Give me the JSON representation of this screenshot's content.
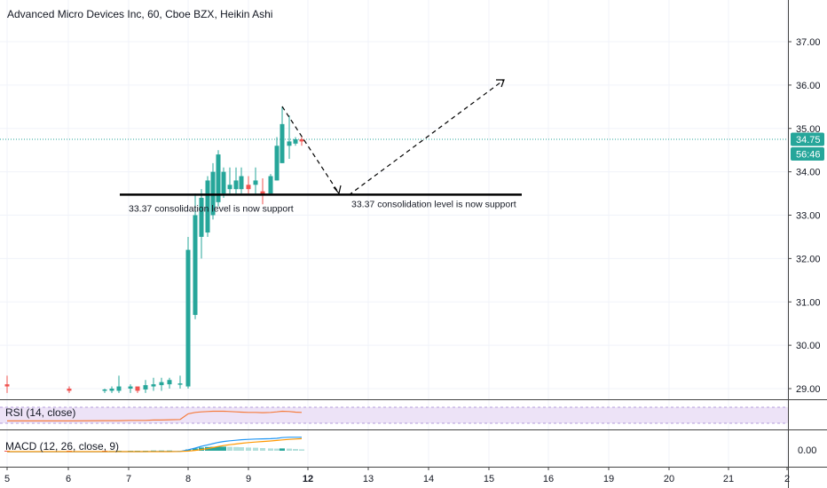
{
  "chart_data": {
    "type": "candlestick",
    "title": "Advanced Micro Devices Inc, 60, Cboe BZX, Heikin Ashi",
    "y_ticks": [
      "37.00",
      "36.00",
      "35.00",
      "34.00",
      "33.00",
      "32.00",
      "31.00",
      "30.00",
      "29.00"
    ],
    "ylim": [
      28.8,
      37.9
    ],
    "x_ticks": [
      "5",
      "6",
      "7",
      "8",
      "9",
      "12",
      "13",
      "14",
      "15",
      "16",
      "19",
      "20",
      "21",
      "2"
    ],
    "current_price": "34.75",
    "countdown": "56:46",
    "colors": {
      "up": "#26a69a",
      "down": "#ef5350",
      "rsi": "#f57c3e",
      "macd": "#2196f3",
      "signal": "#ff9800"
    },
    "candles": [
      {
        "o": 29.1,
        "h": 29.3,
        "l": 28.9,
        "c": 29.05
      },
      {
        "o": 29.0,
        "h": 29.05,
        "l": 28.9,
        "c": 28.95
      },
      {
        "o": 28.95,
        "h": 29.0,
        "l": 28.9,
        "c": 28.98
      },
      {
        "o": 28.95,
        "h": 29.05,
        "l": 28.9,
        "c": 29.0
      },
      {
        "o": 28.95,
        "h": 29.3,
        "l": 28.9,
        "c": 29.05
      },
      {
        "o": 29.0,
        "h": 29.1,
        "l": 28.9,
        "c": 29.05
      },
      {
        "o": 29.05,
        "h": 29.0,
        "l": 28.9,
        "c": 28.95
      },
      {
        "o": 28.98,
        "h": 29.2,
        "l": 28.9,
        "c": 29.08
      },
      {
        "o": 29.05,
        "h": 29.25,
        "l": 28.95,
        "c": 29.1
      },
      {
        "o": 29.08,
        "h": 29.25,
        "l": 28.95,
        "c": 29.15
      },
      {
        "o": 29.1,
        "h": 29.25,
        "l": 29.0,
        "c": 29.2
      },
      {
        "o": 29.1,
        "h": 29.3,
        "l": 29.0,
        "c": 29.12
      },
      {
        "o": 29.05,
        "h": 32.5,
        "l": 29.0,
        "c": 32.2
      },
      {
        "o": 30.7,
        "h": 33.5,
        "l": 30.6,
        "c": 33.0
      },
      {
        "o": 32.5,
        "h": 33.6,
        "l": 32.0,
        "c": 33.4
      },
      {
        "o": 32.6,
        "h": 33.9,
        "l": 32.5,
        "c": 33.8
      },
      {
        "o": 33.0,
        "h": 34.2,
        "l": 32.9,
        "c": 34.0
      },
      {
        "o": 33.3,
        "h": 34.5,
        "l": 33.2,
        "c": 34.4
      },
      {
        "o": 33.5,
        "h": 34.1,
        "l": 33.4,
        "c": 34.0
      },
      {
        "o": 33.6,
        "h": 34.1,
        "l": 33.5,
        "c": 33.7
      },
      {
        "o": 33.6,
        "h": 34.1,
        "l": 33.5,
        "c": 33.8
      },
      {
        "o": 33.6,
        "h": 34.1,
        "l": 33.5,
        "c": 33.9
      },
      {
        "o": 33.7,
        "h": 33.9,
        "l": 33.5,
        "c": 33.6
      },
      {
        "o": 33.7,
        "h": 34.1,
        "l": 33.5,
        "c": 33.8
      },
      {
        "o": 33.55,
        "h": 33.85,
        "l": 33.25,
        "c": 33.45
      },
      {
        "o": 33.5,
        "h": 33.95,
        "l": 33.5,
        "c": 33.9
      },
      {
        "o": 33.8,
        "h": 34.8,
        "l": 33.8,
        "c": 34.6
      },
      {
        "o": 34.2,
        "h": 35.5,
        "l": 34.2,
        "c": 35.1
      },
      {
        "o": 34.6,
        "h": 35.3,
        "l": 34.3,
        "c": 34.7
      },
      {
        "o": 34.65,
        "h": 34.8,
        "l": 34.6,
        "c": 34.75
      },
      {
        "o": 34.75,
        "h": 34.8,
        "l": 34.6,
        "c": 34.7
      }
    ],
    "support": {
      "value": 33.37,
      "label_left": "33.37 consolidation level is now support",
      "label_right": "33.37 consolidation level is now support"
    },
    "rsi": {
      "label": "RSI (14, close)",
      "values": [
        30,
        30,
        31,
        31,
        31,
        32,
        32,
        32,
        33,
        33,
        34,
        35,
        55,
        60,
        62,
        63,
        64,
        64,
        64,
        63,
        62,
        61,
        60,
        60,
        59,
        60,
        62,
        64,
        63,
        61,
        60
      ]
    },
    "macd": {
      "label": "MACD (12, 26, close, 9)",
      "tick": "0.00",
      "macd_line": [
        -0.06,
        -0.06,
        -0.06,
        -0.05,
        -0.05,
        -0.05,
        -0.05,
        -0.05,
        -0.04,
        -0.04,
        -0.04,
        -0.04,
        0.05,
        0.15,
        0.25,
        0.33,
        0.4,
        0.47,
        0.52,
        0.56,
        0.59,
        0.62,
        0.64,
        0.66,
        0.67,
        0.68,
        0.7,
        0.74,
        0.76,
        0.76,
        0.76
      ],
      "signal_line": [
        -0.05,
        -0.05,
        -0.05,
        -0.05,
        -0.05,
        -0.05,
        -0.05,
        -0.05,
        -0.05,
        -0.05,
        -0.05,
        -0.04,
        -0.02,
        0.02,
        0.07,
        0.12,
        0.18,
        0.24,
        0.29,
        0.34,
        0.38,
        0.42,
        0.46,
        0.49,
        0.52,
        0.55,
        0.58,
        0.61,
        0.64,
        0.66,
        0.68
      ],
      "hist": [
        -0.01,
        -0.01,
        -0.01,
        0.0,
        0.0,
        0.0,
        0.0,
        0.0,
        0.01,
        0.01,
        0.01,
        0.0,
        0.07,
        0.13,
        0.18,
        0.21,
        0.22,
        0.23,
        0.23,
        0.22,
        0.21,
        0.2,
        0.18,
        0.17,
        0.15,
        0.13,
        0.12,
        0.13,
        0.12,
        0.1,
        0.08
      ]
    }
  }
}
